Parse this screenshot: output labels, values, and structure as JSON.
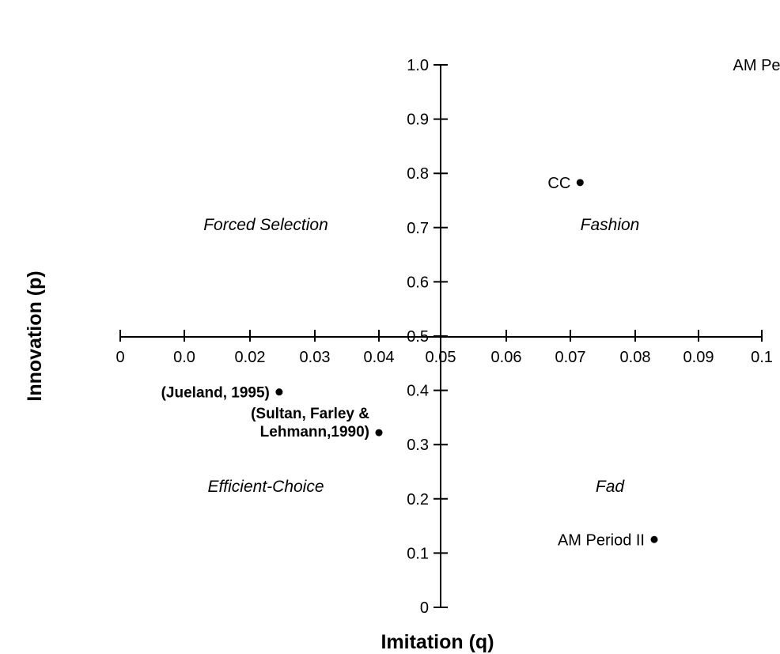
{
  "chart_data": {
    "type": "scatter",
    "xlabel": "Imitation (q)",
    "ylabel": "Innovation (p)",
    "xticks": [
      "0",
      "0.0",
      "0.02",
      "0.03",
      "0.04",
      "0.05",
      "0.06",
      "0.07",
      "0.08",
      "0.09",
      "0.1"
    ],
    "yticks": [
      "0",
      "0.1",
      "0.2",
      "0.3",
      "0.4",
      "0.5",
      "0.6",
      "0.7",
      "0.8",
      "0.9",
      "1.0"
    ],
    "xlim": [
      0,
      0.1
    ],
    "ylim": [
      0,
      1.0
    ],
    "x_crossing": 0.05,
    "y_crossing": 0.5,
    "grid": false,
    "quadrants": [
      "Forced Selection",
      "Fashion",
      "Efficient-Choice",
      "Fad"
    ],
    "points": [
      {
        "label": "AM Period I",
        "x": 0.1,
        "y": 1.0
      },
      {
        "label": "CC",
        "x": 0.0615,
        "y": 0.783
      },
      {
        "label": "(Jueland, 1995)",
        "x": 0.0145,
        "y": 0.397
      },
      {
        "label": "(Sultan, Farley &",
        "label2": "Lehmann,1990)",
        "x": 0.03,
        "y": 0.322
      },
      {
        "label": "AM Period II",
        "x": 0.073,
        "y": 0.125
      }
    ]
  }
}
